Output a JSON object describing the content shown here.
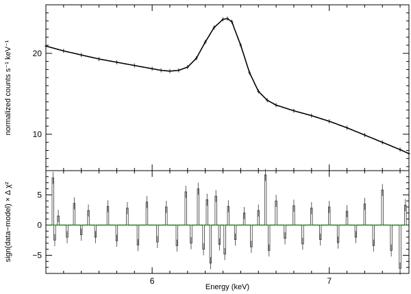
{
  "chart_data": [
    {
      "type": "line",
      "panel": "spectrum",
      "ylabel": "normalized counts s⁻¹ keV⁻¹",
      "xlim": [
        5.4,
        7.45
      ],
      "ylim": [
        5.5,
        26
      ],
      "ytick_labels": [
        "10",
        "20"
      ],
      "yticks": [
        10,
        20
      ],
      "grid": false,
      "series": [
        {
          "role": "data",
          "x": [
            5.4,
            5.5,
            5.6,
            5.7,
            5.8,
            5.9,
            6.0,
            6.05,
            6.1,
            6.15,
            6.2,
            6.25,
            6.3,
            6.35,
            6.4,
            6.425,
            6.45,
            6.5,
            6.55,
            6.6,
            6.65,
            6.7,
            6.8,
            6.9,
            7.0,
            7.1,
            7.2,
            7.3,
            7.4,
            7.45
          ],
          "y": [
            20.9,
            20.3,
            19.8,
            19.3,
            18.9,
            18.5,
            18.1,
            17.9,
            17.8,
            17.9,
            18.3,
            19.4,
            21.4,
            23.2,
            24.2,
            24.3,
            23.9,
            21.0,
            17.6,
            15.3,
            14.2,
            13.6,
            12.9,
            12.3,
            11.6,
            10.8,
            9.9,
            9.0,
            8.1,
            7.6
          ]
        },
        {
          "role": "model",
          "x": [
            5.4,
            5.5,
            5.6,
            5.7,
            5.8,
            5.9,
            6.0,
            6.05,
            6.1,
            6.15,
            6.2,
            6.25,
            6.3,
            6.35,
            6.4,
            6.425,
            6.45,
            6.5,
            6.55,
            6.6,
            6.65,
            6.7,
            6.8,
            6.9,
            7.0,
            7.1,
            7.2,
            7.3,
            7.4,
            7.45
          ],
          "y": [
            20.9,
            20.3,
            19.8,
            19.3,
            18.9,
            18.5,
            18.1,
            17.9,
            17.8,
            17.9,
            18.3,
            19.4,
            21.4,
            23.2,
            24.2,
            24.3,
            23.9,
            21.0,
            17.6,
            15.3,
            14.2,
            13.6,
            12.9,
            12.3,
            11.6,
            10.8,
            9.9,
            9.0,
            8.1,
            7.6
          ]
        }
      ]
    },
    {
      "type": "line",
      "panel": "residuals",
      "xlabel": "Energy (keV)",
      "ylabel": "sign(data−model) × Δ χ²",
      "xlim": [
        5.4,
        7.45
      ],
      "ylim": [
        -8,
        9
      ],
      "xticks": [
        6,
        7
      ],
      "xtick_labels": [
        "6",
        "7"
      ],
      "yticks": [
        -5,
        0,
        5
      ],
      "ytick_labels": [
        "−5",
        "0",
        "5"
      ],
      "grid": false,
      "zero_line_color": "#22cc22",
      "series": [
        {
          "role": "residual",
          "step_width": 0.01,
          "x": [
            5.44,
            5.45,
            5.47,
            5.52,
            5.56,
            5.6,
            5.64,
            5.68,
            5.75,
            5.8,
            5.86,
            5.92,
            5.97,
            6.03,
            6.08,
            6.14,
            6.19,
            6.22,
            6.26,
            6.29,
            6.31,
            6.33,
            6.36,
            6.38,
            6.41,
            6.43,
            6.47,
            6.52,
            6.56,
            6.6,
            6.64,
            6.66,
            6.7,
            6.75,
            6.8,
            6.85,
            6.9,
            6.95,
            7.0,
            7.05,
            7.1,
            7.15,
            7.2,
            7.25,
            7.3,
            7.35,
            7.4,
            7.43
          ],
          "y": [
            7.8,
            -2.5,
            1.5,
            -2.0,
            3.6,
            -1.6,
            2.4,
            -2.0,
            3.1,
            -2.6,
            2.8,
            -3.3,
            3.8,
            -2.8,
            3.0,
            -3.4,
            5.5,
            -3.0,
            6.0,
            -4.0,
            4.2,
            -6.3,
            4.8,
            -3.2,
            -4.8,
            3.1,
            -2.4,
            2.0,
            -3.6,
            2.4,
            8.3,
            -4.2,
            4.0,
            -2.2,
            3.2,
            -3.1,
            2.8,
            -2.4,
            3.0,
            -2.9,
            2.3,
            -2.0,
            3.5,
            -3.4,
            5.8,
            -4.2,
            -7.2,
            3.3
          ]
        }
      ]
    }
  ]
}
